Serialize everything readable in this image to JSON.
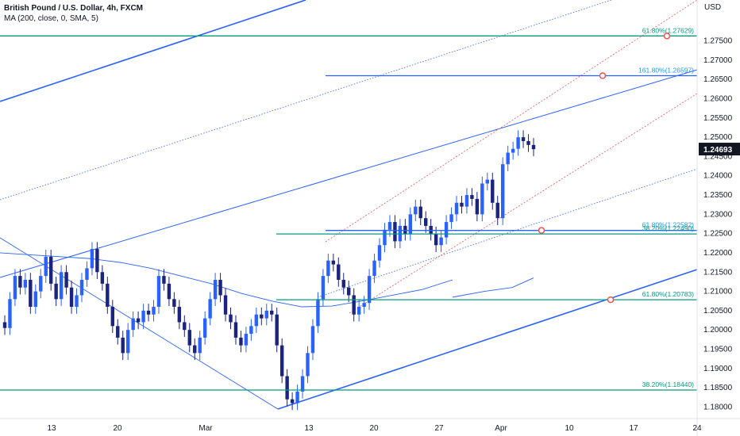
{
  "legend": {
    "symbol": "British Pound / U.S. Dollar, 4h, FXCM",
    "indicator": "MA (200, close, 0, SMA, 5)"
  },
  "colors": {
    "bull": "#2962ff",
    "bear": "#1a237e",
    "fib": "#089981",
    "trend": "#2962ff",
    "red": "#ef5350",
    "text_fib": "#2196f3",
    "price_badge": "#131722"
  },
  "chart_data": {
    "type": "candlestick",
    "symbol": "GBPUSD",
    "timeframe": "4h",
    "yaxis_label": "USD",
    "ylim": [
      1.177,
      1.2815
    ],
    "y_ticks": [
      "1.27500",
      "1.27000",
      "1.26500",
      "1.26000",
      "1.25500",
      "1.25000",
      "1.24500",
      "1.24000",
      "1.23500",
      "1.23000",
      "1.22500",
      "1.22000",
      "1.21500",
      "1.21000",
      "1.20500",
      "1.20000",
      "1.19500",
      "1.19000",
      "1.18500",
      "1.18000"
    ],
    "x_ticks": [
      "13",
      "20",
      "Mar",
      "13",
      "20",
      "27",
      "Apr",
      "10",
      "17",
      "24"
    ],
    "current_price": "1.24693",
    "fib_levels": [
      {
        "label": "61.80%(1.27629)",
        "value": 1.27629
      },
      {
        "label": "161.80%(1.26597)",
        "value": 1.26597
      },
      {
        "label": "61.80%(1.22582)",
        "value": 1.22582
      },
      {
        "label": "38.20%(1.22490)",
        "value": 1.2249
      },
      {
        "label": "61.80%(1.20783)",
        "value": 1.20783
      },
      {
        "label": "38.20%(1.18440)",
        "value": 1.1844
      }
    ],
    "price_path": [
      1.2005,
      1.208,
      1.214,
      1.211,
      1.213,
      1.206,
      1.21,
      1.214,
      1.219,
      1.212,
      1.208,
      1.215,
      1.211,
      1.206,
      1.209,
      1.213,
      1.216,
      1.221,
      1.215,
      1.212,
      1.206,
      1.201,
      1.198,
      1.194,
      1.2,
      1.203,
      1.202,
      1.205,
      1.204,
      1.206,
      1.214,
      1.212,
      1.208,
      1.206,
      1.202,
      1.2,
      1.196,
      1.194,
      1.198,
      1.203,
      1.208,
      1.213,
      1.209,
      1.204,
      1.202,
      1.198,
      1.196,
      1.199,
      1.201,
      1.204,
      1.203,
      1.205,
      1.204,
      1.196,
      1.188,
      1.182,
      1.181,
      1.184,
      1.188,
      1.194,
      1.201,
      1.208,
      1.214,
      1.218,
      1.217,
      1.213,
      1.211,
      1.209,
      1.204,
      1.206,
      1.207,
      1.214,
      1.218,
      1.222,
      1.226,
      1.228,
      1.223,
      1.227,
      1.225,
      1.23,
      1.232,
      1.229,
      1.227,
      1.225,
      1.222,
      1.224,
      1.228,
      1.23,
      1.233,
      1.232,
      1.235,
      1.234,
      1.23,
      1.238,
      1.239,
      1.233,
      1.229,
      1.243,
      1.246,
      1.247,
      1.25,
      1.249,
      1.248,
      1.2469
    ],
    "ma200": [
      1.22,
      1.2195,
      1.219,
      1.2185,
      1.2175,
      1.216,
      1.214,
      1.212,
      1.2095,
      1.2075,
      1.206,
      1.2062,
      1.2075,
      1.209,
      1.2105,
      1.213
    ]
  }
}
